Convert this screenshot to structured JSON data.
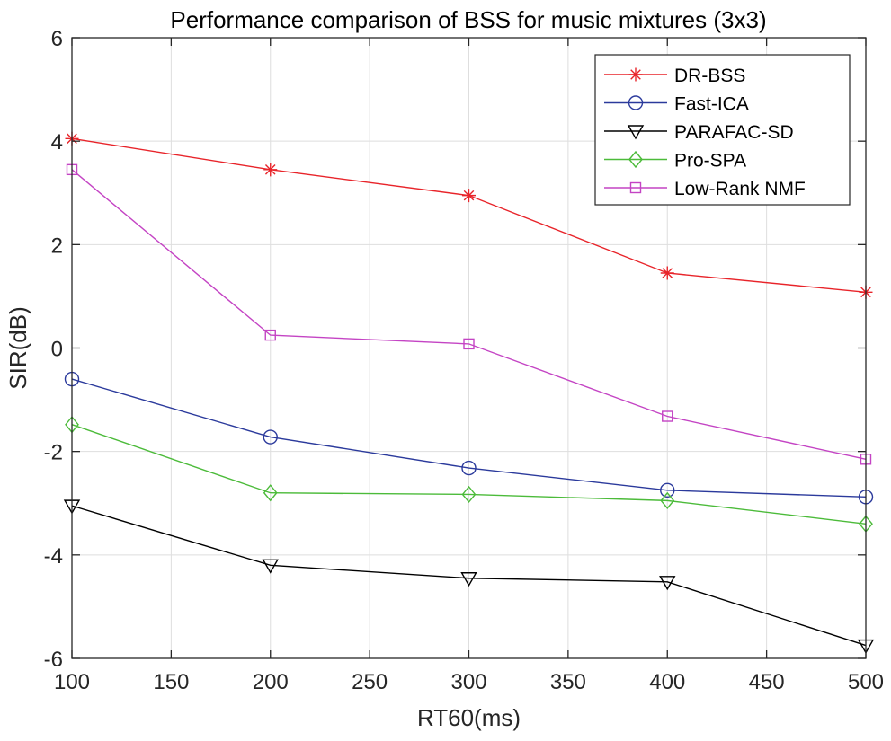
{
  "chart_data": {
    "type": "line",
    "title": "Performance comparison of BSS for music mixtures (3x3)",
    "xlabel": "RT60(ms)",
    "ylabel": "SIR(dB)",
    "xlim": [
      100,
      500
    ],
    "ylim": [
      -6,
      6
    ],
    "xticks": [
      "100",
      "150",
      "200",
      "250",
      "300",
      "350",
      "400",
      "450",
      "500"
    ],
    "yticks": [
      "6",
      "4",
      "2",
      "0",
      "-2",
      "-4",
      "-6"
    ],
    "grid": true,
    "legend_position": "top-right",
    "x": [
      100,
      200,
      300,
      400,
      500
    ],
    "series": [
      {
        "name": "DR-BSS",
        "color": "#e8242a",
        "marker": "asterisk",
        "values": [
          4.05,
          3.45,
          2.95,
          1.45,
          1.08
        ]
      },
      {
        "name": "Fast-ICA",
        "color": "#2b3a9c",
        "marker": "circle",
        "values": [
          -0.6,
          -1.72,
          -2.32,
          -2.75,
          -2.88
        ]
      },
      {
        "name": "PARAFAC-SD",
        "color": "#000000",
        "marker": "triangle-down",
        "values": [
          -3.05,
          -4.2,
          -4.45,
          -4.52,
          -5.75
        ]
      },
      {
        "name": "Pro-SPA",
        "color": "#4cbb3a",
        "marker": "diamond",
        "values": [
          -1.48,
          -2.8,
          -2.83,
          -2.95,
          -3.4
        ]
      },
      {
        "name": "Low-Rank NMF",
        "color": "#c444c4",
        "marker": "square",
        "values": [
          3.45,
          0.25,
          0.08,
          -1.32,
          -2.15
        ]
      }
    ]
  }
}
